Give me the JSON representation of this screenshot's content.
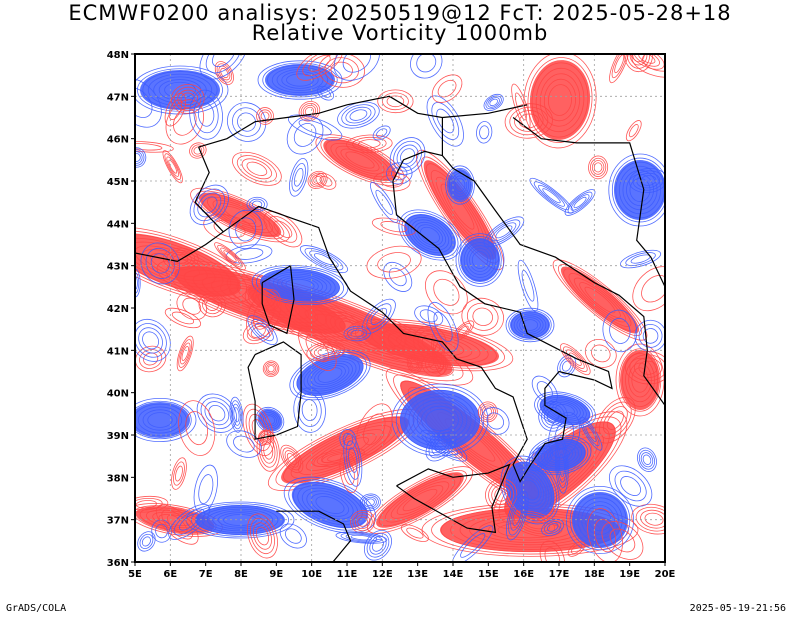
{
  "header": {
    "title_line1": "ECMWF0200 analisys: 20250519@12 FcT: 2025-05-28+18",
    "title_line2": "Relative Vorticity 1000mb"
  },
  "footer": {
    "left": "GrADS/COLA",
    "right": "2025-05-19-21:56"
  },
  "map": {
    "lon_range": [
      5,
      20
    ],
    "lat_range": [
      36,
      48
    ],
    "x_tick_labels": [
      "5E",
      "6E",
      "7E",
      "8E",
      "9E",
      "10E",
      "11E",
      "12E",
      "13E",
      "14E",
      "15E",
      "16E",
      "17E",
      "18E",
      "19E",
      "20E"
    ],
    "y_tick_labels": [
      "36N",
      "37N",
      "38N",
      "39N",
      "40N",
      "41N",
      "42N",
      "43N",
      "44N",
      "45N",
      "46N",
      "47N",
      "48N"
    ],
    "colors": {
      "positive": "#ff4545",
      "negative": "#3d5cff",
      "coast": "#000000",
      "grid": "#a0a0a0"
    }
  }
}
